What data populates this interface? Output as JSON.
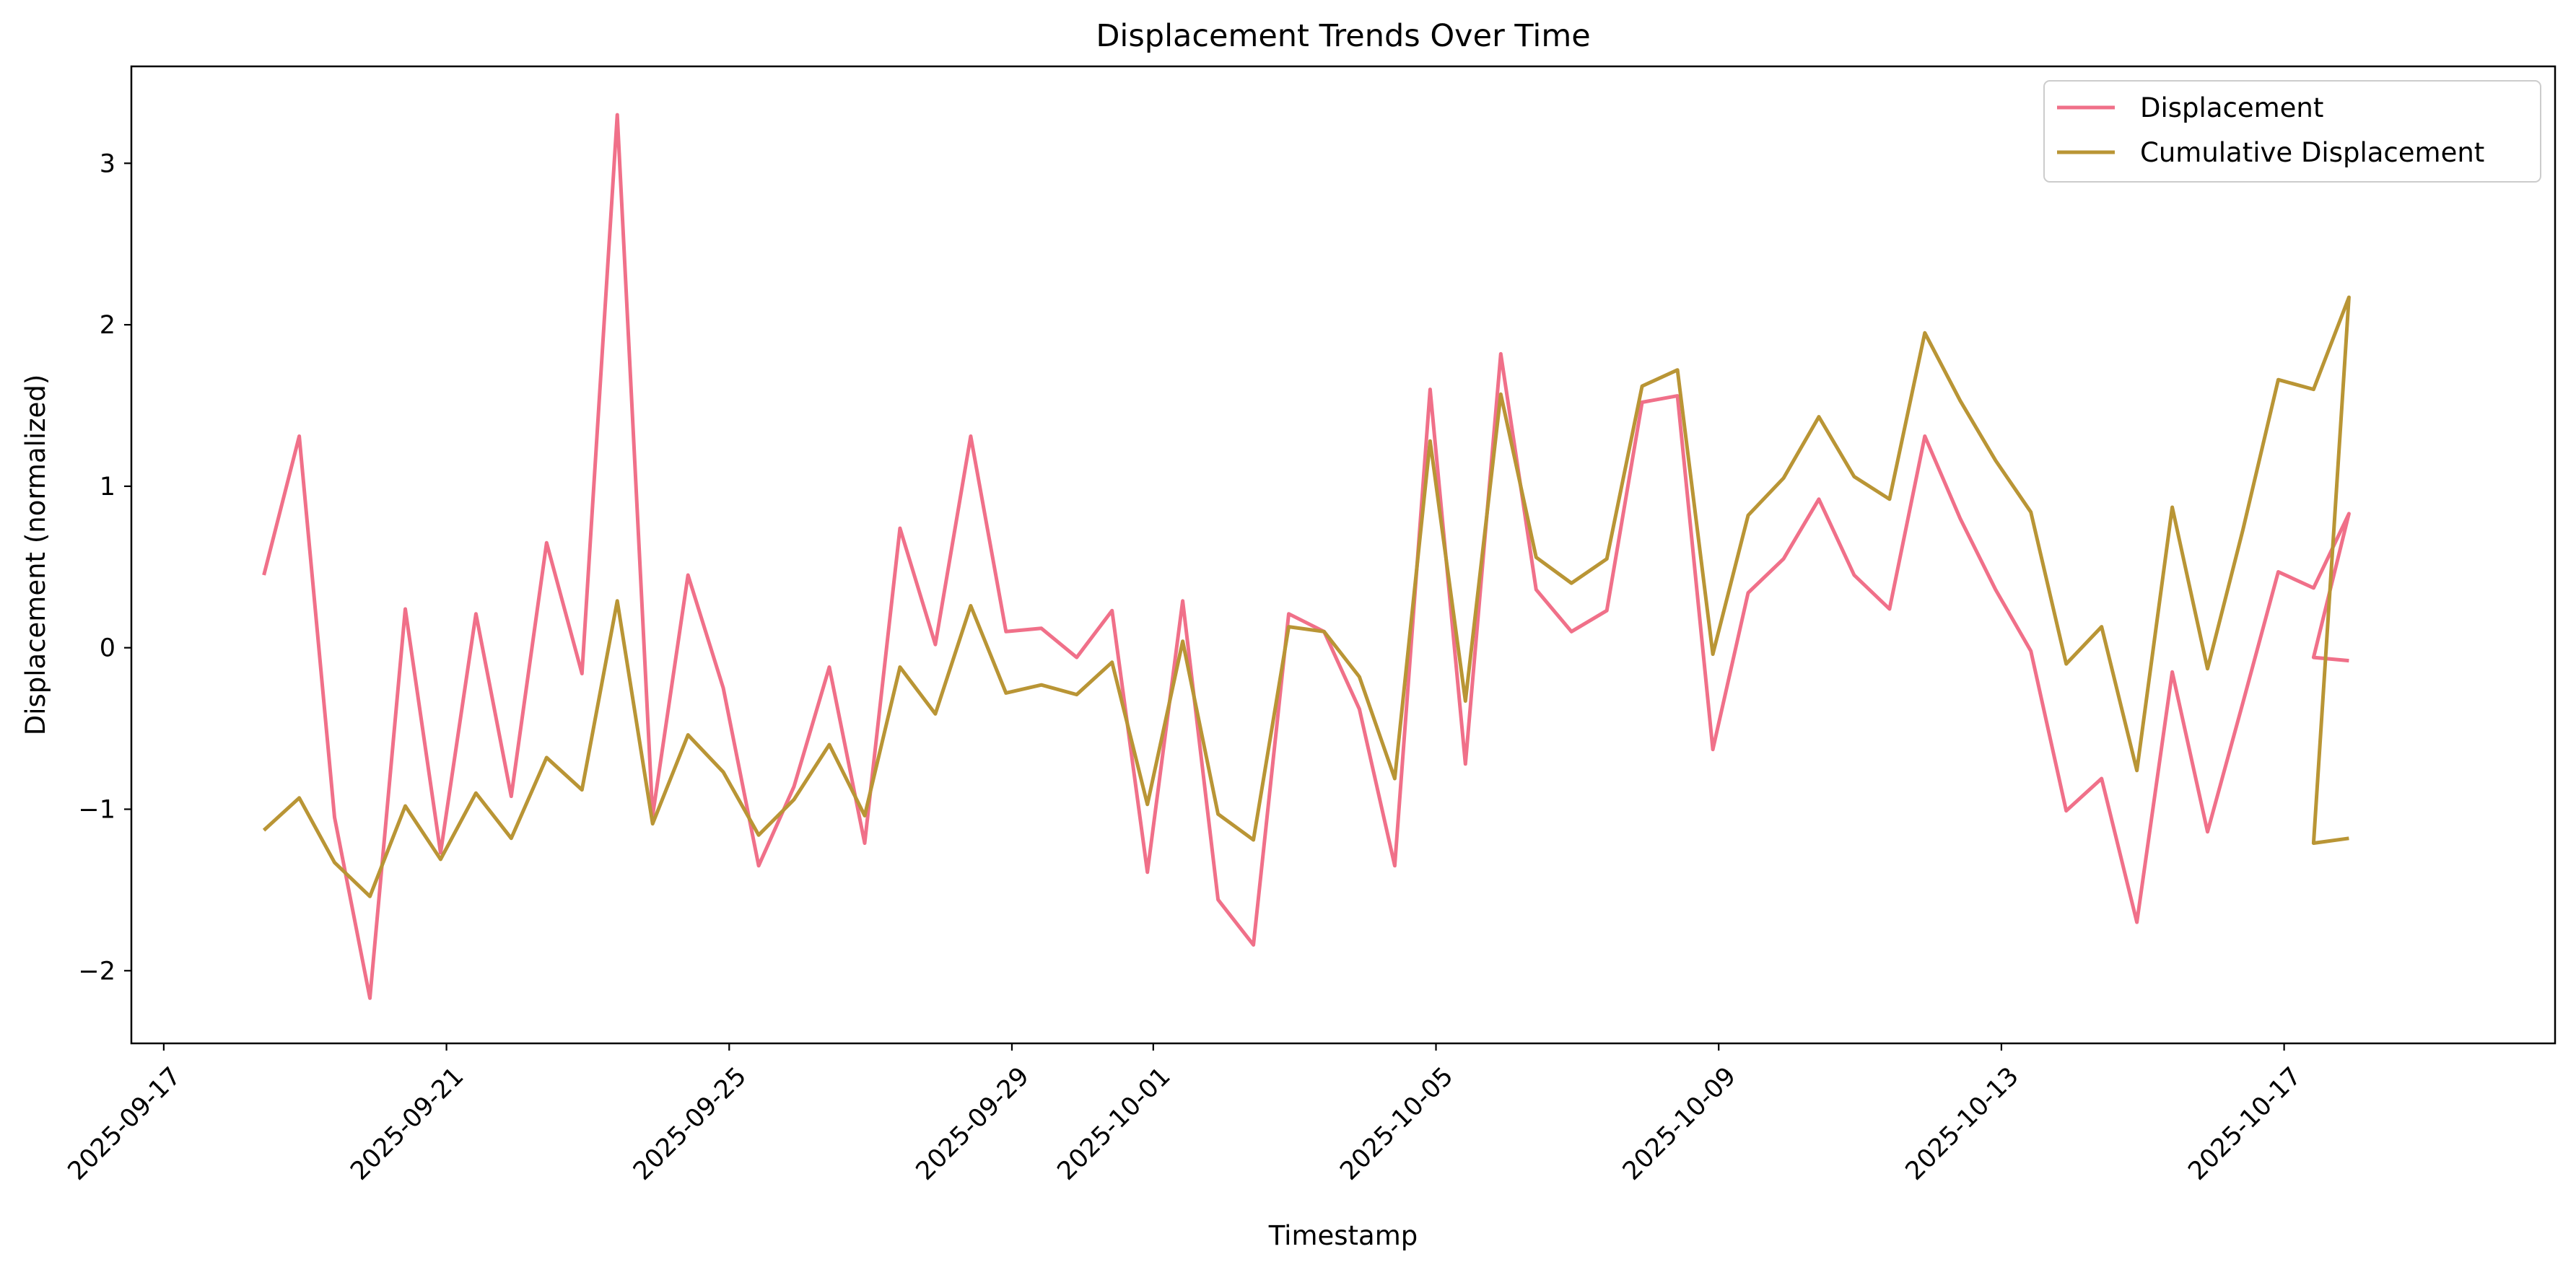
{
  "colors": {
    "displacement": "#f07089",
    "cumulative": "#b99535"
  },
  "chart_data": {
    "type": "line",
    "title": "Displacement Trends Over Time",
    "xlabel": "Timestamp",
    "ylabel": "Displacement (normalized)",
    "xlim": [
      "2025-09-16T13:00",
      "2025-10-20T20:00"
    ],
    "ylim": [
      -2.45,
      3.6
    ],
    "grid": false,
    "legend_position": "top-right",
    "x_ticks": [
      "2025-09-17",
      "2025-09-21",
      "2025-09-25",
      "2025-09-29",
      "2025-10-01",
      "2025-10-05",
      "2025-10-09",
      "2025-10-13",
      "2025-10-17"
    ],
    "y_ticks": [
      -2,
      -1,
      0,
      1,
      2,
      3
    ],
    "y_tick_labels": [
      "−2",
      "−1",
      "0",
      "1",
      "2",
      "3"
    ],
    "series": [
      {
        "name": "Displacement",
        "color_key": "displacement",
        "points": [
          [
            "2025-09-18T10:00",
            0.45
          ],
          [
            "2025-09-18T22:00",
            1.31
          ],
          [
            "2025-09-19T10:00",
            -1.05
          ],
          [
            "2025-09-19T22:00",
            -2.17
          ],
          [
            "2025-09-20T10:00",
            0.24
          ],
          [
            "2025-09-20T22:00",
            -1.27
          ],
          [
            "2025-09-21T10:00",
            0.21
          ],
          [
            "2025-09-21T22:00",
            -0.92
          ],
          [
            "2025-09-22T10:00",
            0.65
          ],
          [
            "2025-09-22T22:00",
            -0.16
          ],
          [
            "2025-09-23T10:00",
            3.3
          ],
          [
            "2025-09-23T22:00",
            -1.04
          ],
          [
            "2025-09-24T10:00",
            0.45
          ],
          [
            "2025-09-24T22:00",
            -0.25
          ],
          [
            "2025-09-25T10:00",
            -1.35
          ],
          [
            "2025-09-25T22:00",
            -0.86
          ],
          [
            "2025-09-26T10:00",
            -0.12
          ],
          [
            "2025-09-26T22:00",
            -1.21
          ],
          [
            "2025-09-27T10:00",
            0.74
          ],
          [
            "2025-09-27T22:00",
            0.02
          ],
          [
            "2025-09-28T10:00",
            1.31
          ],
          [
            "2025-09-28T22:00",
            0.1
          ],
          [
            "2025-09-29T10:00",
            0.12
          ],
          [
            "2025-09-29T22:00",
            -0.06
          ],
          [
            "2025-09-30T10:00",
            0.23
          ],
          [
            "2025-09-30T22:00",
            -1.39
          ],
          [
            "2025-10-01T10:00",
            0.29
          ],
          [
            "2025-10-01T22:00",
            -1.56
          ],
          [
            "2025-10-02T10:00",
            -1.84
          ],
          [
            "2025-10-02T22:00",
            0.21
          ],
          [
            "2025-10-03T10:00",
            0.1
          ],
          [
            "2025-10-03T22:00",
            -0.38
          ],
          [
            "2025-10-04T10:00",
            -1.35
          ],
          [
            "2025-10-04T22:00",
            1.6
          ],
          [
            "2025-10-05T10:00",
            -0.72
          ],
          [
            "2025-10-05T22:00",
            1.82
          ],
          [
            "2025-10-06T10:00",
            0.36
          ],
          [
            "2025-10-06T22:00",
            0.1
          ],
          [
            "2025-10-07T10:00",
            0.23
          ],
          [
            "2025-10-07T22:00",
            1.52
          ],
          [
            "2025-10-08T10:00",
            1.56
          ],
          [
            "2025-10-08T22:00",
            -0.63
          ],
          [
            "2025-10-09T10:00",
            0.34
          ],
          [
            "2025-10-09T22:00",
            0.55
          ],
          [
            "2025-10-10T10:00",
            0.92
          ],
          [
            "2025-10-10T22:00",
            0.45
          ],
          [
            "2025-10-11T10:00",
            0.24
          ],
          [
            "2025-10-11T22:00",
            1.31
          ],
          [
            "2025-10-12T10:00",
            0.8
          ],
          [
            "2025-10-12T22:00",
            0.36
          ],
          [
            "2025-10-13T10:00",
            -0.02
          ],
          [
            "2025-10-13T22:00",
            -1.01
          ],
          [
            "2025-10-14T10:00",
            -0.81
          ],
          [
            "2025-10-14T22:00",
            -1.7
          ],
          [
            "2025-10-15T10:00",
            -0.15
          ],
          [
            "2025-10-15T22:00",
            -1.14
          ],
          [
            "2025-10-16T10:00",
            -0.34
          ],
          [
            "2025-10-16T22:00",
            0.47
          ],
          [
            "2025-10-17T10:00",
            0.37
          ],
          [
            "2025-10-17T22:00",
            0.83
          ],
          [
            "2025-10-17T10:00",
            -0.06
          ],
          [
            "2025-10-17T22:00",
            -0.08
          ]
        ]
      },
      {
        "name": "Cumulative Displacement",
        "color_key": "cumulative",
        "points": [
          [
            "2025-09-18T10:00",
            -1.13
          ],
          [
            "2025-09-18T22:00",
            -0.93
          ],
          [
            "2025-09-19T10:00",
            -1.33
          ],
          [
            "2025-09-19T22:00",
            -1.54
          ],
          [
            "2025-09-20T10:00",
            -0.98
          ],
          [
            "2025-09-20T22:00",
            -1.31
          ],
          [
            "2025-09-21T10:00",
            -0.9
          ],
          [
            "2025-09-21T22:00",
            -1.18
          ],
          [
            "2025-09-22T10:00",
            -0.68
          ],
          [
            "2025-09-22T22:00",
            -0.88
          ],
          [
            "2025-09-23T10:00",
            0.29
          ],
          [
            "2025-09-23T22:00",
            -1.09
          ],
          [
            "2025-09-24T10:00",
            -0.54
          ],
          [
            "2025-09-24T22:00",
            -0.77
          ],
          [
            "2025-09-25T10:00",
            -1.16
          ],
          [
            "2025-09-25T22:00",
            -0.94
          ],
          [
            "2025-09-26T10:00",
            -0.6
          ],
          [
            "2025-09-26T22:00",
            -1.04
          ],
          [
            "2025-09-27T10:00",
            -0.12
          ],
          [
            "2025-09-27T22:00",
            -0.41
          ],
          [
            "2025-09-28T10:00",
            0.26
          ],
          [
            "2025-09-28T22:00",
            -0.28
          ],
          [
            "2025-09-29T10:00",
            -0.23
          ],
          [
            "2025-09-29T22:00",
            -0.29
          ],
          [
            "2025-09-30T10:00",
            -0.09
          ],
          [
            "2025-09-30T22:00",
            -0.97
          ],
          [
            "2025-10-01T10:00",
            0.04
          ],
          [
            "2025-10-01T22:00",
            -1.03
          ],
          [
            "2025-10-02T10:00",
            -1.19
          ],
          [
            "2025-10-02T22:00",
            0.13
          ],
          [
            "2025-10-03T10:00",
            0.1
          ],
          [
            "2025-10-03T22:00",
            -0.18
          ],
          [
            "2025-10-04T10:00",
            -0.81
          ],
          [
            "2025-10-04T22:00",
            1.28
          ],
          [
            "2025-10-05T10:00",
            -0.33
          ],
          [
            "2025-10-05T22:00",
            1.57
          ],
          [
            "2025-10-06T10:00",
            0.56
          ],
          [
            "2025-10-06T22:00",
            0.4
          ],
          [
            "2025-10-07T10:00",
            0.55
          ],
          [
            "2025-10-07T22:00",
            1.62
          ],
          [
            "2025-10-08T10:00",
            1.72
          ],
          [
            "2025-10-08T22:00",
            -0.04
          ],
          [
            "2025-10-09T10:00",
            0.82
          ],
          [
            "2025-10-09T22:00",
            1.05
          ],
          [
            "2025-10-10T10:00",
            1.43
          ],
          [
            "2025-10-10T22:00",
            1.06
          ],
          [
            "2025-10-11T10:00",
            0.92
          ],
          [
            "2025-10-11T22:00",
            1.95
          ],
          [
            "2025-10-12T10:00",
            1.53
          ],
          [
            "2025-10-12T22:00",
            1.16
          ],
          [
            "2025-10-13T10:00",
            0.84
          ],
          [
            "2025-10-13T22:00",
            -0.1
          ],
          [
            "2025-10-14T10:00",
            0.13
          ],
          [
            "2025-10-14T22:00",
            -0.76
          ],
          [
            "2025-10-15T10:00",
            0.87
          ],
          [
            "2025-10-15T22:00",
            -0.13
          ],
          [
            "2025-10-16T10:00",
            0.73
          ],
          [
            "2025-10-16T22:00",
            1.66
          ],
          [
            "2025-10-17T10:00",
            1.6
          ],
          [
            "2025-10-17T22:00",
            2.17
          ],
          [
            "2025-10-17T10:00",
            -1.21
          ],
          [
            "2025-10-17T22:00",
            -1.18
          ]
        ]
      }
    ]
  }
}
